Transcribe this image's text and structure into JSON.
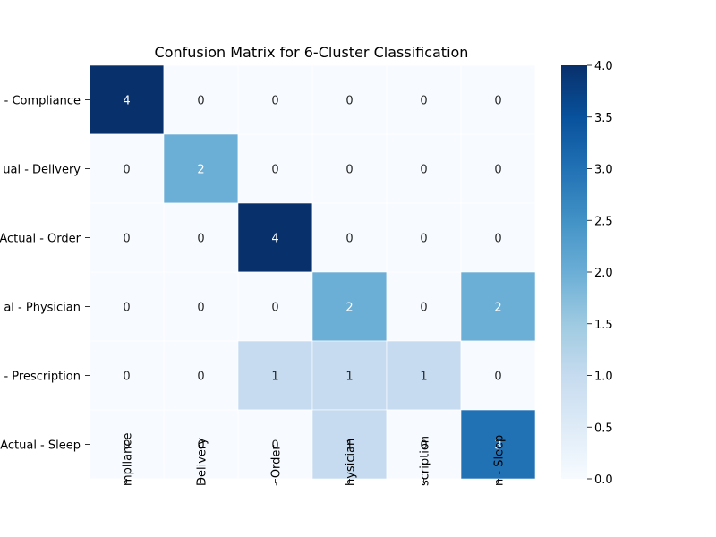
{
  "chart_data": {
    "type": "heatmap",
    "title": "Confusion Matrix for 6-Cluster Classification",
    "row_labels": [
      "Actual - Compliance",
      "Actual - Delivery",
      "Actual - Order",
      "Actual - Physician",
      "Actual - Prescription",
      "Actual - Sleep"
    ],
    "row_labels_visible": [
      "- Compliance",
      "ual - Delivery",
      "Actual - Order",
      "al - Physician",
      "- Prescription",
      "Actual - Sleep"
    ],
    "col_labels_visible": [
      "mpliance",
      "Delivery",
      "- Order",
      "hysician",
      "scription",
      "n - Sleep"
    ],
    "values": [
      [
        4,
        0,
        0,
        0,
        0,
        0
      ],
      [
        0,
        2,
        0,
        0,
        0,
        0
      ],
      [
        0,
        0,
        4,
        0,
        0,
        0
      ],
      [
        0,
        0,
        0,
        2,
        0,
        2
      ],
      [
        0,
        0,
        1,
        1,
        1,
        0
      ],
      [
        0,
        0,
        0,
        1,
        0,
        3
      ]
    ],
    "vmin": 0,
    "vmax": 4,
    "colormap": "Blues",
    "colorbar_ticks": [
      "0.0",
      "0.5",
      "1.0",
      "1.5",
      "2.0",
      "2.5",
      "3.0",
      "3.5",
      "4.0"
    ],
    "colors": {
      "low": "#f7fbff",
      "high": "#08306b",
      "annotation_dark": "#262626",
      "annotation_light": "#ffffff"
    }
  }
}
